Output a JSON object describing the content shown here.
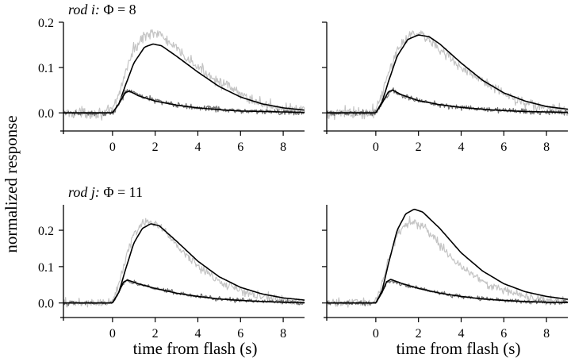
{
  "figure": {
    "ylabel": "normalized response",
    "colors": {
      "noisy_large": "#c4c4c4",
      "noisy_small": "#6f6f6f",
      "fit": "#000000"
    }
  },
  "chart_data": [
    {
      "type": "line",
      "title": "rod i: Φ = 8",
      "title_parts": {
        "italic": "rod i:",
        "rest": " Φ = 8"
      },
      "xlabel": "",
      "xlim": [
        -2.3,
        9.0
      ],
      "ylim": [
        -0.04,
        0.2
      ],
      "xticks": [
        0,
        2,
        4,
        6,
        8
      ],
      "yticks": [
        0.0,
        0.1,
        0.2
      ],
      "ytick_labels": [
        "0.0",
        "0.1",
        "0.2"
      ],
      "grid": false,
      "series": [
        {
          "role": "noisy-large-response",
          "color": "#c4c4c4",
          "x": [
            -2.3,
            -0.3,
            0,
            0.3,
            0.6,
            1.0,
            1.5,
            1.9,
            2.3,
            3.0,
            4.0,
            5.0,
            6.0,
            7.0,
            8.0,
            9.0
          ],
          "y": [
            0,
            0,
            0.005,
            0.04,
            0.09,
            0.14,
            0.17,
            0.18,
            0.17,
            0.14,
            0.1,
            0.07,
            0.04,
            0.02,
            0.01,
            0.005
          ]
        },
        {
          "role": "fit-large",
          "color": "#000000",
          "x": [
            -2.3,
            0,
            0.3,
            0.6,
            1.0,
            1.5,
            1.9,
            2.3,
            3.0,
            4.0,
            5.0,
            6.0,
            7.0,
            8.0,
            9.0
          ],
          "y": [
            0,
            0,
            0.02,
            0.06,
            0.11,
            0.145,
            0.152,
            0.148,
            0.125,
            0.09,
            0.058,
            0.035,
            0.02,
            0.011,
            0.006
          ]
        },
        {
          "role": "noisy-small-response",
          "color": "#6f6f6f",
          "x": [
            -2.3,
            0,
            0.3,
            0.6,
            0.8,
            1.2,
            2.0,
            3.0,
            4.0,
            5.0,
            6.0,
            7.0,
            8.0,
            9.0
          ],
          "y": [
            0,
            0,
            0.02,
            0.045,
            0.05,
            0.04,
            0.027,
            0.018,
            0.012,
            0.008,
            0.005,
            0.003,
            0.002,
            0.001
          ]
        },
        {
          "role": "fit-small",
          "color": "#000000",
          "x": [
            -2.3,
            0,
            0.3,
            0.6,
            0.8,
            1.2,
            2.0,
            3.0,
            4.0,
            5.0,
            6.0,
            7.0,
            8.0,
            9.0
          ],
          "y": [
            0,
            0,
            0.02,
            0.045,
            0.048,
            0.038,
            0.026,
            0.017,
            0.011,
            0.007,
            0.004,
            0.003,
            0.002,
            0.001
          ]
        }
      ]
    },
    {
      "type": "line",
      "title": "",
      "xlabel": "",
      "xlim": [
        -2.3,
        9.0
      ],
      "ylim": [
        -0.04,
        0.2
      ],
      "xticks": [
        0,
        2,
        4,
        6,
        8
      ],
      "yticks": [
        0.0,
        0.1,
        0.2
      ],
      "ytick_labels": [],
      "grid": false,
      "series": [
        {
          "role": "noisy-large-response",
          "color": "#c4c4c4",
          "x": [
            -2.3,
            -0.3,
            0,
            0.3,
            0.6,
            1.0,
            1.5,
            1.9,
            2.3,
            3.0,
            4.0,
            5.0,
            6.0,
            7.0,
            8.0,
            9.0
          ],
          "y": [
            0,
            0,
            0.005,
            0.04,
            0.09,
            0.14,
            0.17,
            0.18,
            0.17,
            0.14,
            0.1,
            0.07,
            0.04,
            0.02,
            0.01,
            0.005
          ]
        },
        {
          "role": "fit-large",
          "color": "#000000",
          "x": [
            -2.3,
            0,
            0.3,
            0.6,
            1.0,
            1.5,
            2.0,
            2.5,
            3.0,
            4.0,
            5.0,
            6.0,
            7.0,
            8.0,
            9.0
          ],
          "y": [
            0,
            0,
            0.025,
            0.07,
            0.125,
            0.162,
            0.172,
            0.168,
            0.152,
            0.11,
            0.072,
            0.044,
            0.026,
            0.014,
            0.008
          ]
        },
        {
          "role": "noisy-small-response",
          "color": "#6f6f6f",
          "x": [
            -2.3,
            0,
            0.3,
            0.6,
            0.8,
            1.2,
            2.0,
            3.0,
            4.0,
            5.0,
            6.0,
            7.0,
            8.0,
            9.0
          ],
          "y": [
            0,
            0,
            0.02,
            0.045,
            0.05,
            0.04,
            0.027,
            0.018,
            0.012,
            0.008,
            0.005,
            0.003,
            0.002,
            0.001
          ]
        },
        {
          "role": "fit-small",
          "color": "#000000",
          "x": [
            -2.3,
            0,
            0.3,
            0.6,
            0.8,
            1.2,
            2.0,
            3.0,
            4.0,
            5.0,
            6.0,
            7.0,
            8.0,
            9.0
          ],
          "y": [
            0,
            0,
            0.022,
            0.047,
            0.05,
            0.04,
            0.027,
            0.018,
            0.012,
            0.008,
            0.005,
            0.003,
            0.002,
            0.001
          ]
        }
      ]
    },
    {
      "type": "line",
      "title": "rod j: Φ = 11",
      "title_parts": {
        "italic": "rod j:",
        "rest": " Φ = 11"
      },
      "xlabel": "time from flash (s)",
      "xlim": [
        -2.3,
        9.0
      ],
      "ylim": [
        -0.04,
        0.27
      ],
      "xticks": [
        0,
        2,
        4,
        6,
        8
      ],
      "yticks": [
        0.0,
        0.1,
        0.2
      ],
      "ytick_labels": [
        "0.0",
        "0.1",
        "0.2"
      ],
      "grid": false,
      "series": [
        {
          "role": "noisy-large-response",
          "color": "#c4c4c4",
          "x": [
            -2.3,
            -0.3,
            0,
            0.3,
            0.6,
            1.0,
            1.4,
            1.8,
            2.2,
            3.0,
            4.0,
            5.0,
            6.0,
            7.0,
            8.0,
            9.0
          ],
          "y": [
            0,
            0,
            0.005,
            0.05,
            0.12,
            0.19,
            0.22,
            0.225,
            0.21,
            0.16,
            0.1,
            0.06,
            0.035,
            0.018,
            0.008,
            0.003
          ]
        },
        {
          "role": "fit-large",
          "color": "#000000",
          "x": [
            -2.3,
            0,
            0.3,
            0.6,
            1.0,
            1.4,
            1.8,
            2.2,
            3.0,
            4.0,
            5.0,
            6.0,
            7.0,
            8.0,
            9.0
          ],
          "y": [
            0,
            0,
            0.03,
            0.09,
            0.165,
            0.205,
            0.218,
            0.212,
            0.17,
            0.115,
            0.072,
            0.043,
            0.025,
            0.014,
            0.008
          ]
        },
        {
          "role": "noisy-small-response",
          "color": "#6f6f6f",
          "x": [
            -2.3,
            0,
            0.3,
            0.5,
            0.7,
            1.2,
            2.0,
            3.0,
            4.0,
            5.0,
            6.0,
            7.0,
            8.0,
            9.0
          ],
          "y": [
            0,
            0,
            0.03,
            0.055,
            0.06,
            0.052,
            0.04,
            0.028,
            0.018,
            0.012,
            0.007,
            0.004,
            0.002,
            0.001
          ]
        },
        {
          "role": "fit-small",
          "color": "#000000",
          "x": [
            -2.3,
            0,
            0.3,
            0.5,
            0.7,
            1.2,
            2.0,
            3.0,
            4.0,
            5.0,
            6.0,
            7.0,
            8.0,
            9.0
          ],
          "y": [
            0,
            0,
            0.03,
            0.057,
            0.063,
            0.053,
            0.04,
            0.027,
            0.018,
            0.011,
            0.007,
            0.004,
            0.002,
            0.001
          ]
        }
      ]
    },
    {
      "type": "line",
      "title": "",
      "xlabel": "time from flash (s)",
      "xlim": [
        -2.3,
        9.0
      ],
      "ylim": [
        -0.04,
        0.27
      ],
      "xticks": [
        0,
        2,
        4,
        6,
        8
      ],
      "yticks": [
        0.0,
        0.1,
        0.2
      ],
      "ytick_labels": [],
      "grid": false,
      "series": [
        {
          "role": "noisy-large-response",
          "color": "#c4c4c4",
          "x": [
            -2.3,
            -0.3,
            0,
            0.3,
            0.6,
            1.0,
            1.4,
            1.8,
            2.2,
            3.0,
            4.0,
            5.0,
            6.0,
            7.0,
            8.0,
            9.0
          ],
          "y": [
            0,
            0,
            0.005,
            0.05,
            0.12,
            0.19,
            0.22,
            0.225,
            0.21,
            0.16,
            0.1,
            0.06,
            0.035,
            0.018,
            0.008,
            0.003
          ]
        },
        {
          "role": "fit-large",
          "color": "#000000",
          "x": [
            -2.3,
            0,
            0.3,
            0.6,
            1.0,
            1.4,
            1.8,
            2.2,
            3.0,
            4.0,
            5.0,
            6.0,
            7.0,
            8.0,
            9.0
          ],
          "y": [
            0,
            0,
            0.035,
            0.11,
            0.2,
            0.245,
            0.258,
            0.25,
            0.205,
            0.138,
            0.088,
            0.053,
            0.031,
            0.018,
            0.01
          ]
        },
        {
          "role": "noisy-small-response",
          "color": "#6f6f6f",
          "x": [
            -2.3,
            0,
            0.3,
            0.5,
            0.7,
            1.2,
            2.0,
            3.0,
            4.0,
            5.0,
            6.0,
            7.0,
            8.0,
            9.0
          ],
          "y": [
            0,
            0,
            0.03,
            0.055,
            0.06,
            0.052,
            0.04,
            0.028,
            0.018,
            0.012,
            0.007,
            0.004,
            0.002,
            0.001
          ]
        },
        {
          "role": "fit-small",
          "color": "#000000",
          "x": [
            -2.3,
            0,
            0.3,
            0.5,
            0.7,
            1.2,
            2.0,
            3.0,
            4.0,
            5.0,
            6.0,
            7.0,
            8.0,
            9.0
          ],
          "y": [
            0,
            0,
            0.03,
            0.058,
            0.065,
            0.054,
            0.04,
            0.027,
            0.018,
            0.011,
            0.007,
            0.004,
            0.002,
            0.001
          ]
        }
      ]
    }
  ]
}
